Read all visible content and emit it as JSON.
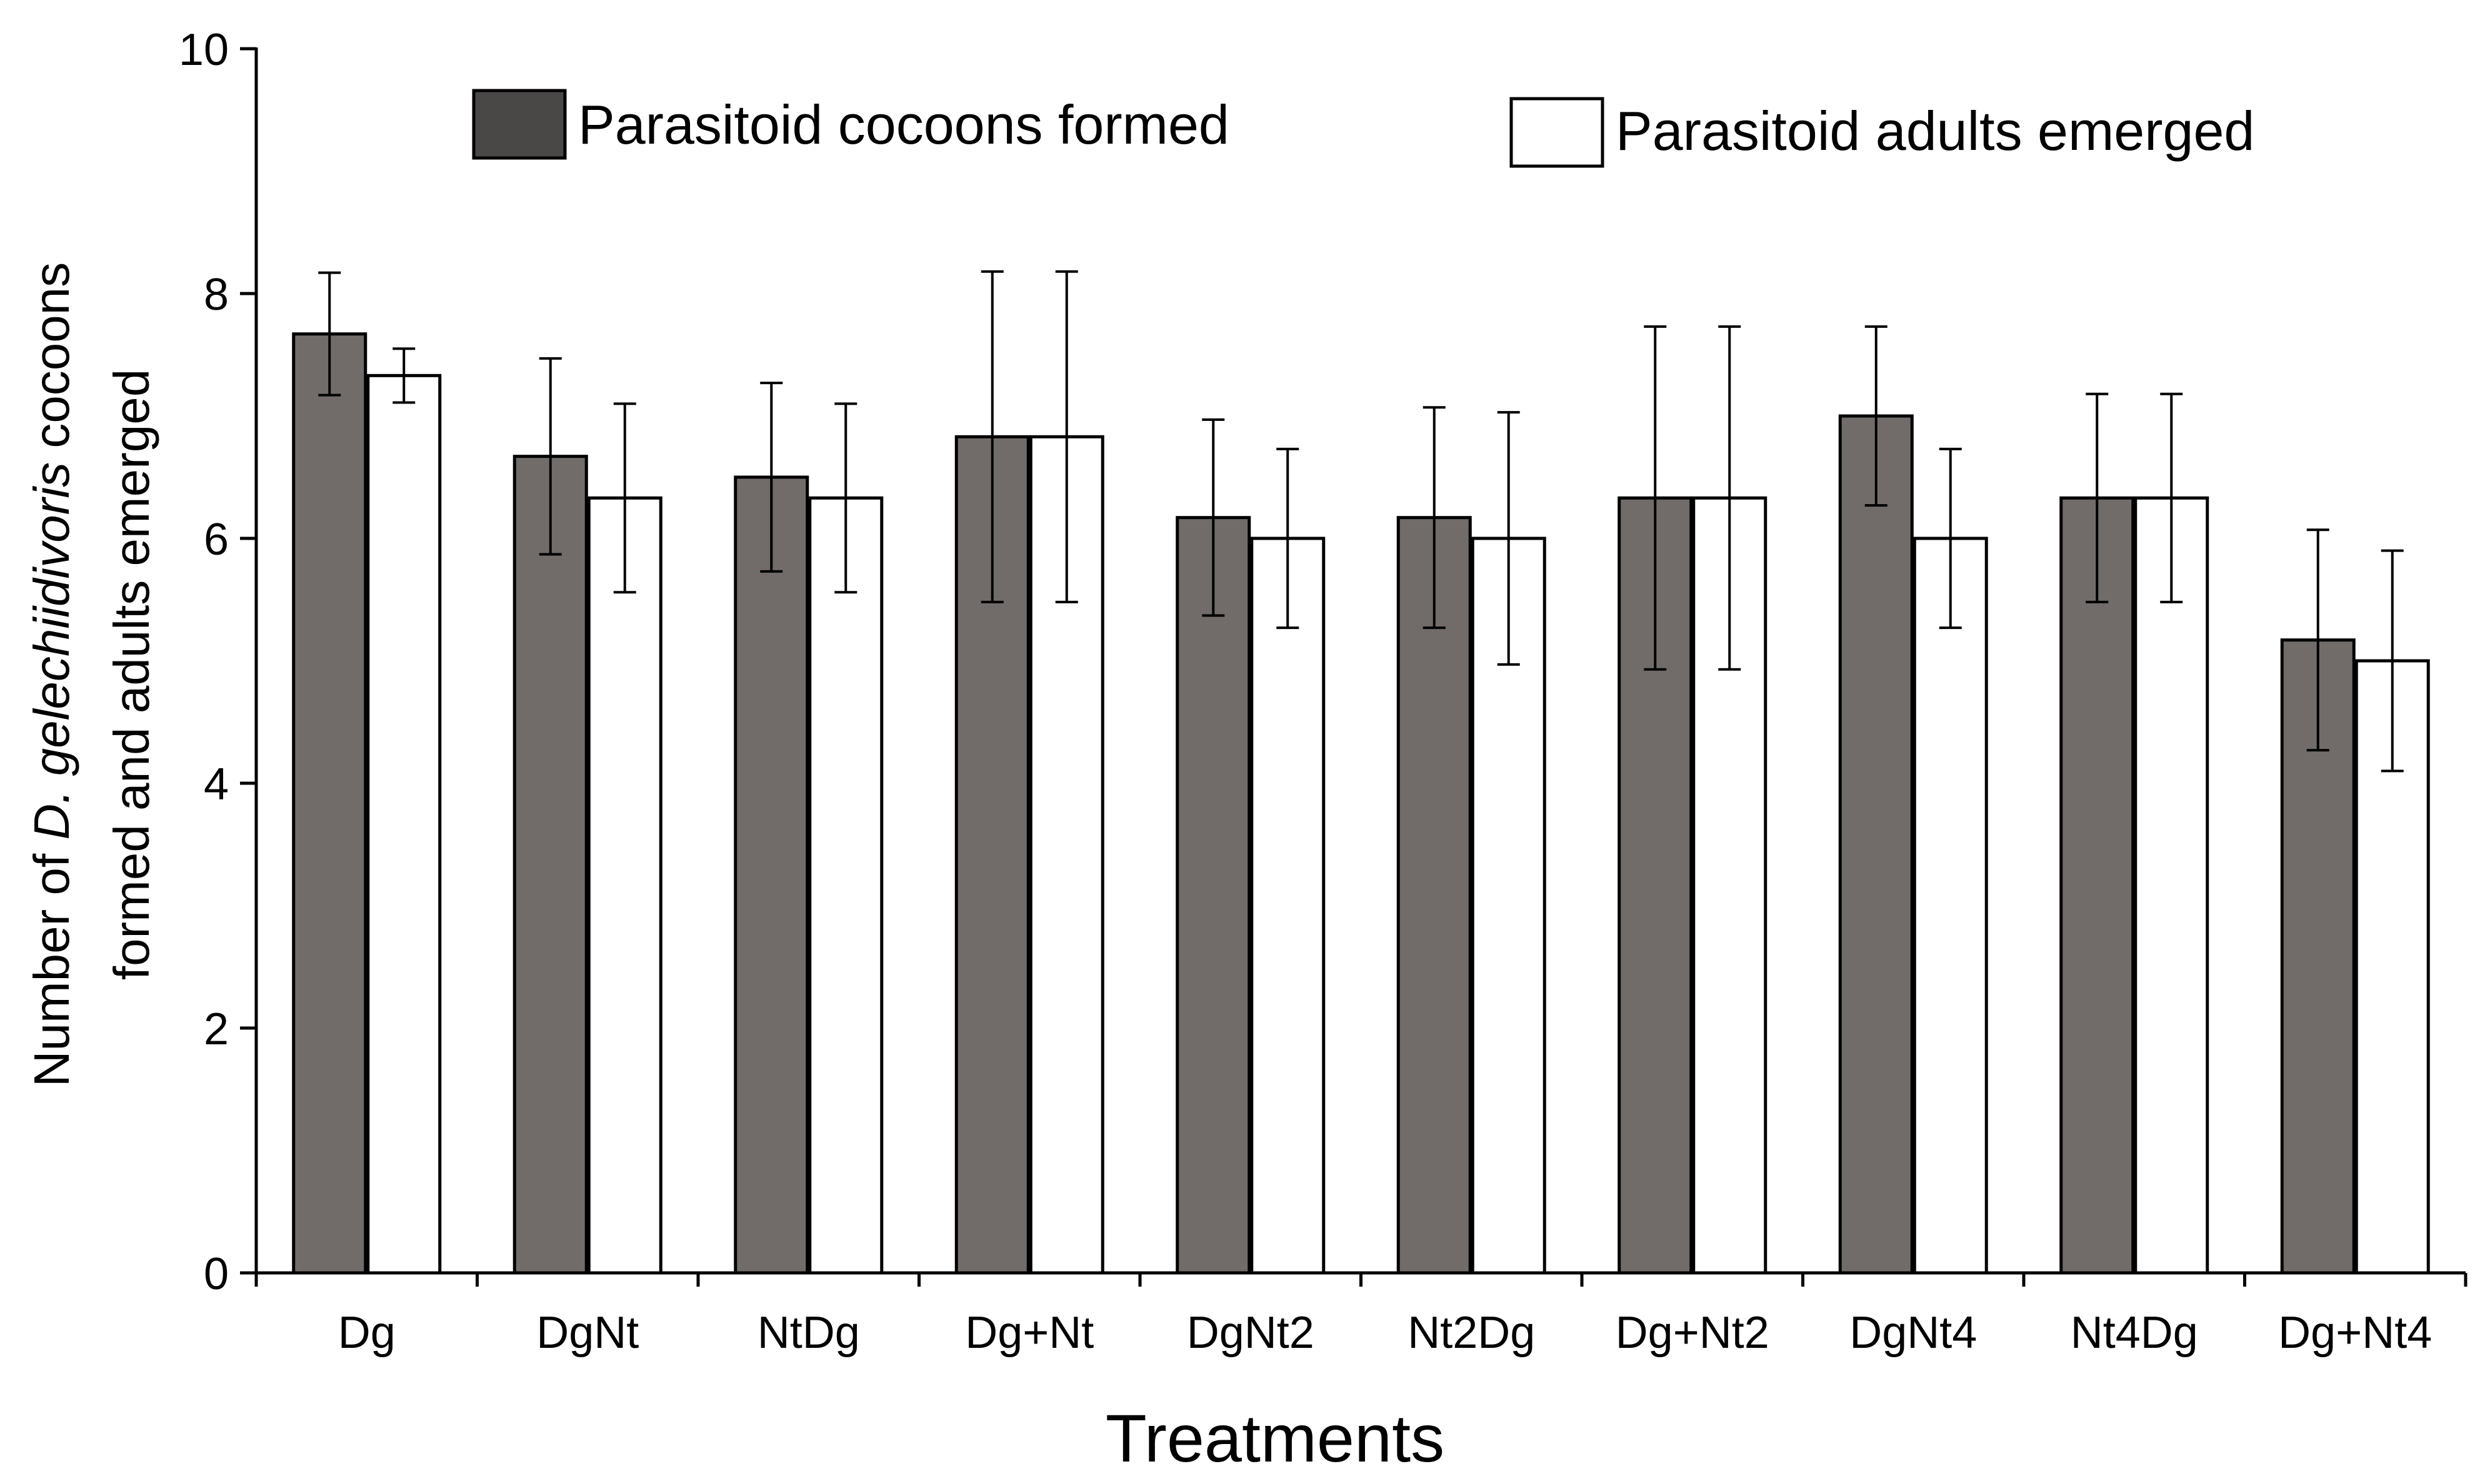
{
  "chart_data": {
    "type": "bar",
    "title": "",
    "xlabel": "Treatments",
    "ylabel_line1_prefix": "Number of ",
    "ylabel_line1_italic": "D. gelechiidivoris",
    "ylabel_line1_suffix": " cocoons",
    "ylabel_line2": "formed and adults emerged",
    "ylim": [
      0,
      10
    ],
    "yticks": [
      "0",
      "2",
      "4",
      "6",
      "8",
      "10"
    ],
    "categories": [
      "Dg",
      "DgNt",
      "NtDg",
      "Dg+Nt",
      "DgNt2",
      "Nt2Dg",
      "Dg+Nt2",
      "DgNt4",
      "Nt4Dg",
      "Dg+Nt4"
    ],
    "series": [
      {
        "name": "Parasitoid cocoons formed",
        "color": "#716c6a",
        "values": [
          7.67,
          6.67,
          6.5,
          6.83,
          6.17,
          6.17,
          6.33,
          7.0,
          6.33,
          5.17
        ],
        "errors": [
          0.5,
          0.8,
          0.77,
          1.35,
          0.8,
          0.9,
          1.4,
          0.73,
          0.85,
          0.9
        ]
      },
      {
        "name": "Parasitoid adults emerged",
        "color": "#ffffff",
        "values": [
          7.33,
          6.33,
          6.33,
          6.83,
          6.0,
          6.0,
          6.33,
          6.0,
          6.33,
          5.0
        ],
        "errors": [
          0.22,
          0.77,
          0.77,
          1.35,
          0.73,
          1.03,
          1.4,
          0.73,
          0.85,
          0.9
        ]
      }
    ],
    "legend_position": "top"
  }
}
